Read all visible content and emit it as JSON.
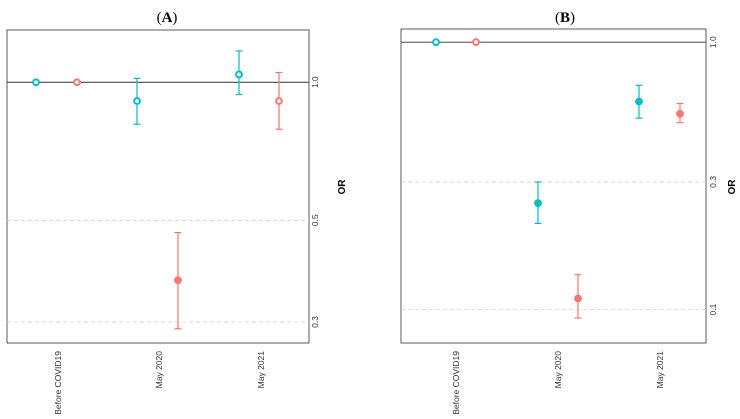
{
  "chart_data": [
    {
      "type": "scatter",
      "panel_label": "A",
      "title": "(A)",
      "ylabel": "OR",
      "yscale": "log",
      "ylim": [
        0.27,
        1.3
      ],
      "yticks": [
        0.3,
        0.5,
        1.0
      ],
      "ytick_labels": [
        "0.3",
        "0.5",
        "1.0"
      ],
      "reference_line": 1.0,
      "categories": [
        "Before COVID19",
        "May 2020",
        "May 2021"
      ],
      "grid": "dashed horizontal",
      "series": [
        {
          "color": "#00BFC4",
          "points": [
            {
              "x": "Before COVID19",
              "y": 1.0,
              "low": 1.0,
              "high": 1.0,
              "marker": "open"
            },
            {
              "x": "May 2020",
              "y": 0.91,
              "low": 0.81,
              "high": 1.02,
              "marker": "open"
            },
            {
              "x": "May 2021",
              "y": 1.04,
              "low": 0.94,
              "high": 1.17,
              "marker": "open"
            }
          ]
        },
        {
          "color": "#F8766D",
          "points": [
            {
              "x": "Before COVID19",
              "y": 1.0,
              "low": 1.0,
              "high": 1.0,
              "marker": "open"
            },
            {
              "x": "May 2020",
              "y": 0.37,
              "low": 0.29,
              "high": 0.47,
              "marker": "filled"
            },
            {
              "x": "May 2021",
              "y": 0.91,
              "low": 0.79,
              "high": 1.05,
              "marker": "open"
            }
          ]
        }
      ]
    },
    {
      "type": "scatter",
      "panel_label": "B",
      "title": "(B)",
      "ylabel": "OR",
      "yscale": "log",
      "ylim": [
        0.075,
        1.12
      ],
      "yticks": [
        0.1,
        0.3,
        1.0
      ],
      "ytick_labels": [
        "0.1",
        "0.3",
        "1.0"
      ],
      "reference_line": 1.0,
      "categories": [
        "Before COVID19",
        "May 2020",
        "May 2021"
      ],
      "grid": "dashed horizontal",
      "series": [
        {
          "color": "#00BFC4",
          "points": [
            {
              "x": "Before COVID19",
              "y": 1.0,
              "low": 1.0,
              "high": 1.0,
              "marker": "open"
            },
            {
              "x": "May 2020",
              "y": 0.25,
              "low": 0.21,
              "high": 0.3,
              "marker": "filled"
            },
            {
              "x": "May 2021",
              "y": 0.6,
              "low": 0.52,
              "high": 0.69,
              "marker": "filled"
            }
          ]
        },
        {
          "color": "#F8766D",
          "points": [
            {
              "x": "Before COVID19",
              "y": 1.0,
              "low": 1.0,
              "high": 1.0,
              "marker": "open"
            },
            {
              "x": "May 2020",
              "y": 0.11,
              "low": 0.093,
              "high": 0.135,
              "marker": "filled"
            },
            {
              "x": "May 2021",
              "y": 0.54,
              "low": 0.5,
              "high": 0.59,
              "marker": "filled"
            }
          ]
        }
      ]
    }
  ]
}
